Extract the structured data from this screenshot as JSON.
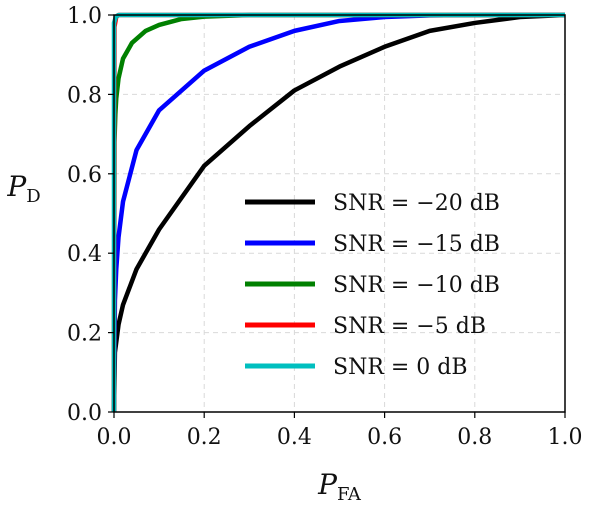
{
  "chart_data": {
    "type": "line",
    "xlabel": {
      "main": "P",
      "sub": "FA"
    },
    "ylabel": {
      "main": "P",
      "sub": "D"
    },
    "xlim": [
      0,
      1
    ],
    "ylim": [
      0,
      1
    ],
    "grid": true,
    "legend_position": "center-right",
    "xticks": [
      "0.0",
      "0.2",
      "0.4",
      "0.6",
      "0.8",
      "1.0"
    ],
    "yticks": [
      "0.0",
      "0.2",
      "0.4",
      "0.6",
      "0.8",
      "1.0"
    ],
    "series": [
      {
        "name": "SNR = −20 dB",
        "color": "#000000",
        "x": [
          0,
          0.002,
          0.01,
          0.02,
          0.05,
          0.1,
          0.2,
          0.3,
          0.4,
          0.5,
          0.6,
          0.7,
          0.8,
          0.9,
          1.0
        ],
        "y": [
          0,
          0.15,
          0.22,
          0.27,
          0.36,
          0.46,
          0.62,
          0.72,
          0.81,
          0.87,
          0.92,
          0.96,
          0.98,
          0.995,
          1.0
        ]
      },
      {
        "name": "SNR = −15 dB",
        "color": "#0000ff",
        "x": [
          0,
          0.002,
          0.005,
          0.01,
          0.02,
          0.05,
          0.1,
          0.2,
          0.3,
          0.4,
          0.5,
          0.6,
          0.7,
          0.8,
          1.0
        ],
        "y": [
          0,
          0.28,
          0.36,
          0.44,
          0.53,
          0.66,
          0.76,
          0.86,
          0.92,
          0.96,
          0.985,
          0.995,
          0.999,
          1.0,
          1.0
        ]
      },
      {
        "name": "SNR = −10 dB",
        "color": "#008000",
        "x": [
          0,
          0.001,
          0.003,
          0.005,
          0.01,
          0.02,
          0.04,
          0.07,
          0.1,
          0.15,
          0.2,
          0.3,
          1.0
        ],
        "y": [
          0,
          0.68,
          0.75,
          0.79,
          0.84,
          0.89,
          0.93,
          0.96,
          0.975,
          0.99,
          0.996,
          1.0,
          1.0
        ]
      },
      {
        "name": "SNR = −5 dB",
        "color": "#ff0000",
        "x": [
          0,
          0.001,
          0.005,
          0.01,
          1.0
        ],
        "y": [
          0,
          0.97,
          0.995,
          1.0,
          1.0
        ]
      },
      {
        "name": "SNR = 0 dB",
        "color": "#00bfbf",
        "x": [
          0,
          0.0,
          0.004,
          0.008,
          0.012,
          0.02,
          1.0
        ],
        "y": [
          0,
          0.98,
          0.995,
          0.999,
          1.0,
          1.0,
          1.0
        ]
      }
    ]
  }
}
